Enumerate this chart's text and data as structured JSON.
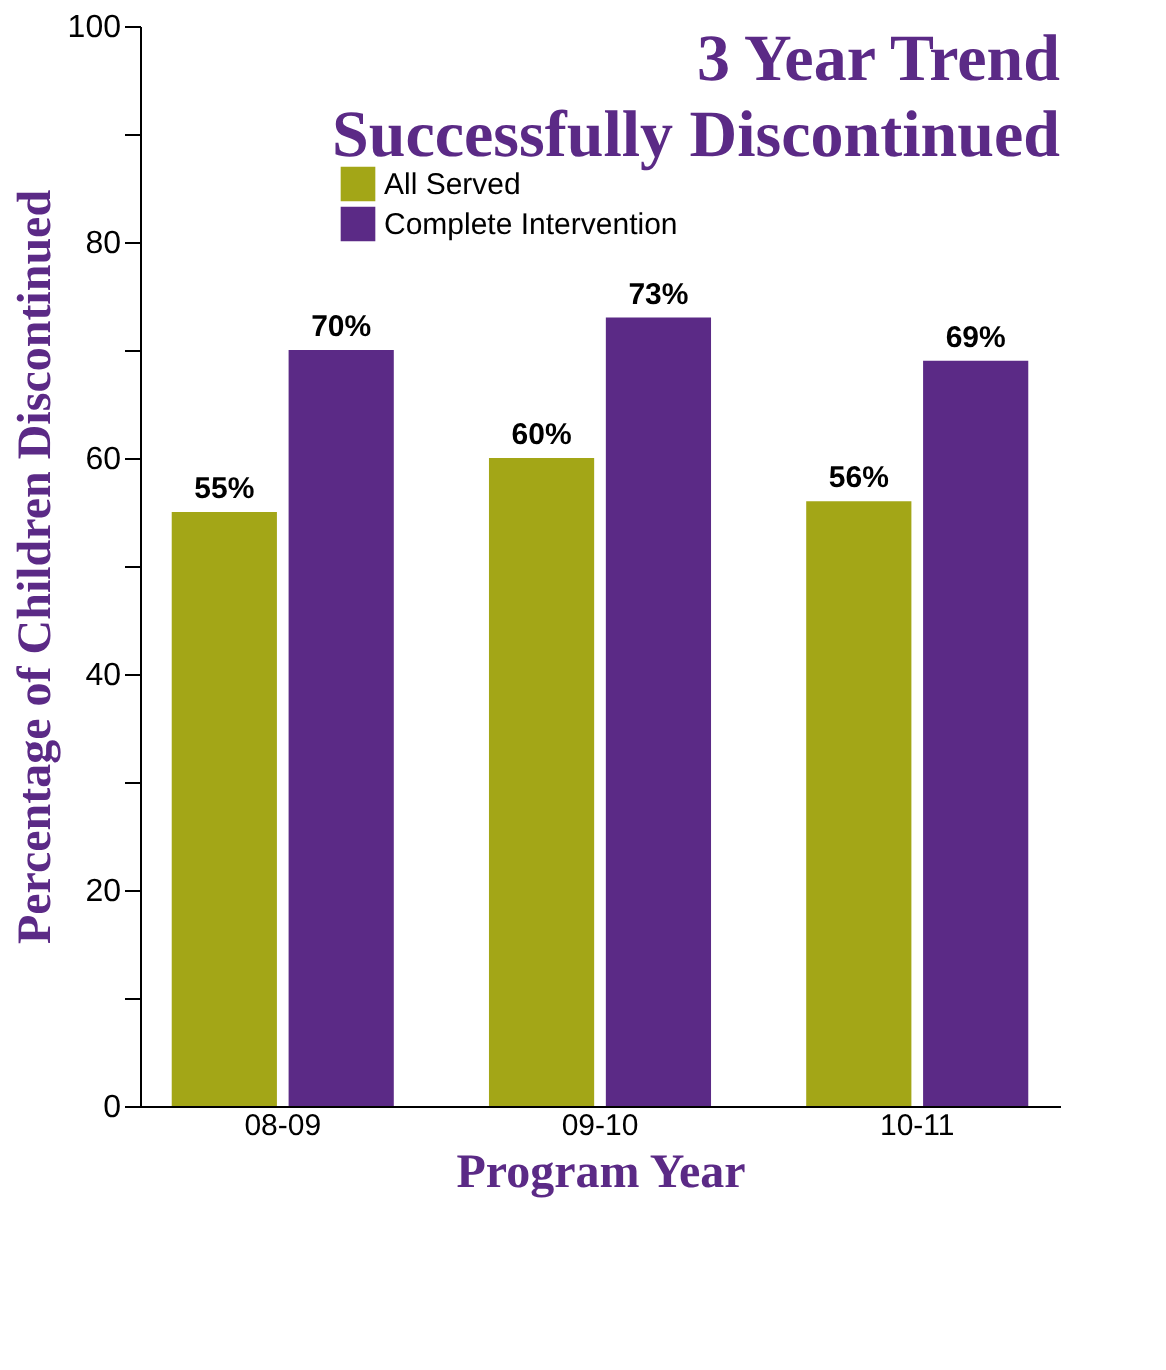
{
  "chart_data": {
    "type": "bar",
    "title": "3 Year Trend\nSuccessfully Discontinued",
    "xlabel": "Program Year",
    "ylabel": "Percentage of Children Discontinued",
    "categories": [
      "08-09",
      "09-10",
      "10-11"
    ],
    "series": [
      {
        "name": "All Served",
        "color": "#a3a617",
        "values": [
          55,
          60,
          56
        ],
        "value_labels": [
          "55%",
          "60%",
          "56%"
        ]
      },
      {
        "name": "Complete Intervention",
        "color": "#5b2a86",
        "values": [
          70,
          73,
          69
        ],
        "value_labels": [
          "70%",
          "73%",
          "69%"
        ]
      }
    ],
    "ylim": [
      0,
      100
    ],
    "yticks": [
      0,
      {
        "value": 10,
        "label": null
      },
      20,
      {
        "value": 30,
        "label": null
      },
      40,
      {
        "value": 50,
        "label": null
      },
      60,
      {
        "value": 70,
        "label": null
      },
      80,
      {
        "value": 90,
        "label": null
      },
      100
    ],
    "grid": false,
    "legend": "top"
  }
}
